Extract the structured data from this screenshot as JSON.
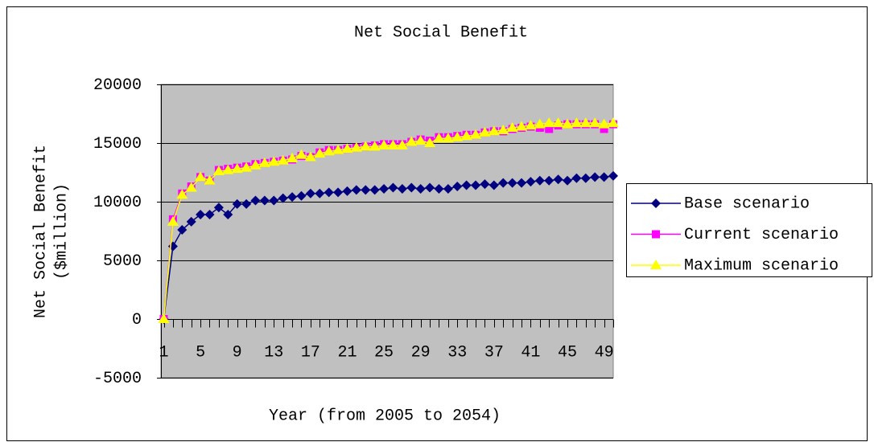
{
  "chart_data": {
    "type": "line",
    "title": "Net Social Benefit",
    "x_label": "Year (from 2005 to 2054)",
    "y_label": [
      "Net Social Benefit",
      "($million)"
    ],
    "categories": [
      1,
      null,
      null,
      null,
      5,
      null,
      null,
      null,
      9,
      null,
      null,
      null,
      13,
      null,
      null,
      null,
      17,
      null,
      null,
      null,
      21,
      null,
      null,
      null,
      25,
      null,
      null,
      null,
      29,
      null,
      null,
      null,
      33,
      null,
      null,
      null,
      37,
      null,
      null,
      null,
      41,
      null,
      null,
      null,
      45,
      null,
      null,
      null,
      49,
      null
    ],
    "series": [
      {
        "name": "Base scenario",
        "color": "#000080",
        "marker": "diamond",
        "values": [
          0,
          6200,
          7600,
          8300,
          8900,
          8900,
          9500,
          8900,
          9800,
          9800,
          10100,
          10100,
          10100,
          10300,
          10400,
          10500,
          10700,
          10700,
          10800,
          10800,
          10900,
          11000,
          11000,
          11000,
          11100,
          11200,
          11100,
          11200,
          11100,
          11200,
          11100,
          11100,
          11300,
          11400,
          11400,
          11500,
          11400,
          11600,
          11600,
          11600,
          11700,
          11800,
          11800,
          11900,
          11800,
          12000,
          12000,
          12100,
          12100,
          12200
        ]
      },
      {
        "name": "Current scenario",
        "color": "#ff00ff",
        "marker": "square",
        "values": [
          0,
          8500,
          10700,
          11300,
          12100,
          11800,
          12700,
          12800,
          12900,
          13000,
          13200,
          13300,
          13400,
          13500,
          13600,
          13900,
          13800,
          14200,
          14400,
          14400,
          14500,
          14600,
          14700,
          14800,
          14900,
          14900,
          14900,
          15100,
          15300,
          15200,
          15500,
          15500,
          15600,
          15700,
          15700,
          15900,
          16000,
          16000,
          16200,
          16300,
          16400,
          16300,
          16200,
          16500,
          16600,
          16600,
          16600,
          16600,
          16200,
          16600
        ]
      },
      {
        "name": "Maximum scenario",
        "color": "#ffff00",
        "marker": "triangle",
        "values": [
          0,
          8300,
          10600,
          11200,
          12100,
          11800,
          12600,
          12700,
          12800,
          12900,
          13100,
          13300,
          13400,
          13500,
          13700,
          14000,
          13800,
          14100,
          14300,
          14400,
          14500,
          14600,
          14700,
          14700,
          14800,
          14800,
          14800,
          15100,
          15200,
          15000,
          15400,
          15400,
          15500,
          15600,
          15700,
          15900,
          16000,
          16100,
          16300,
          16400,
          16500,
          16600,
          16700,
          16700,
          16600,
          16700,
          16700,
          16700,
          16600,
          16700
        ]
      }
    ],
    "ylim": [
      -5000,
      20000
    ],
    "yticks": [
      -5000,
      0,
      5000,
      10000,
      15000,
      20000
    ],
    "grid": true,
    "legend": "right",
    "plot_background": "#c0c0c0"
  }
}
